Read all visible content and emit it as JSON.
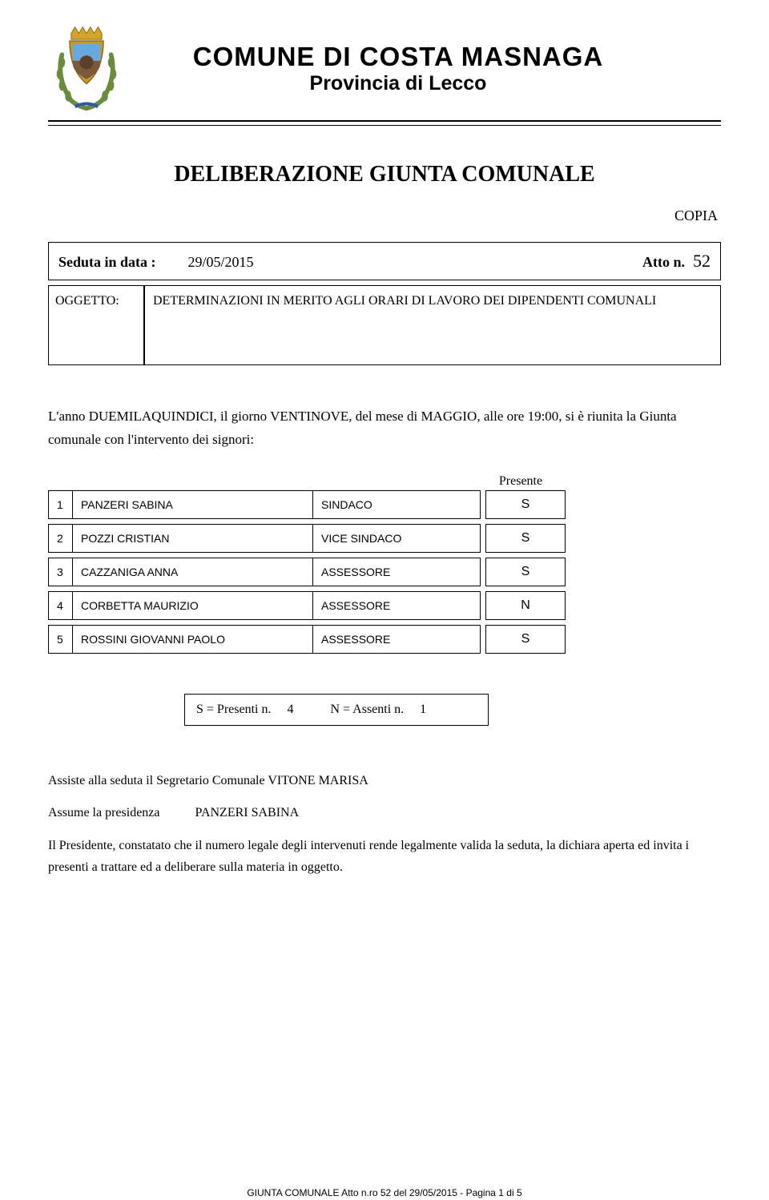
{
  "header": {
    "title_line1": "COMUNE DI COSTA MASNAGA",
    "title_line2": "Provincia di Lecco",
    "crest_colors": {
      "crown": "#d4a32c",
      "shield_border": "#c79a2a",
      "shield_top": "#6aa9e0",
      "shield_bottom": "#7a5a3a",
      "laurel": "#6b8b3d"
    }
  },
  "deliberazione": "DELIBERAZIONE GIUNTA COMUNALE",
  "copia": "COPIA",
  "seduta": {
    "label": "Seduta in data :",
    "date": "29/05/2015",
    "atto_label": "Atto n.",
    "atto_num": "52"
  },
  "oggetto": {
    "label": "OGGETTO:",
    "text": "DETERMINAZIONI IN MERITO AGLI ORARI DI LAVORO DEI DIPENDENTI COMUNALI"
  },
  "narrative": "L'anno DUEMILAQUINDICI, il giorno VENTINOVE, del mese di MAGGIO, alle ore 19:00, si è riunita la Giunta comunale con l'intervento dei signori:",
  "presente_label": "Presente",
  "members": [
    {
      "n": "1",
      "name": "PANZERI SABINA",
      "role": "SINDACO",
      "presence": "S"
    },
    {
      "n": "2",
      "name": "POZZI CRISTIAN",
      "role": "VICE SINDACO",
      "presence": "S"
    },
    {
      "n": "3",
      "name": "CAZZANIGA ANNA",
      "role": "ASSESSORE",
      "presence": "S"
    },
    {
      "n": "4",
      "name": "CORBETTA MAURIZIO",
      "role": "ASSESSORE",
      "presence": "N"
    },
    {
      "n": "5",
      "name": "ROSSINI GIOVANNI PAOLO",
      "role": "ASSESSORE",
      "presence": "S"
    }
  ],
  "summary": {
    "presenti_label": "S = Presenti n.",
    "presenti_count": "4",
    "assenti_label": "N = Assenti n.",
    "assenti_count": "1"
  },
  "assiste": {
    "prefix": "Assiste alla seduta il Segretario Comunale ",
    "name": "VITONE MARISA"
  },
  "assume": {
    "label": "Assume la presidenza",
    "name": "PANZERI SABINA"
  },
  "closing": "Il Presidente, constatato che il numero legale degli intervenuti rende legalmente valida la seduta, la dichiara aperta ed invita i presenti a trattare ed a deliberare sulla materia in oggetto.",
  "footer": "GIUNTA COMUNALE Atto n.ro 52 del 29/05/2015 - Pagina 1 di 5"
}
